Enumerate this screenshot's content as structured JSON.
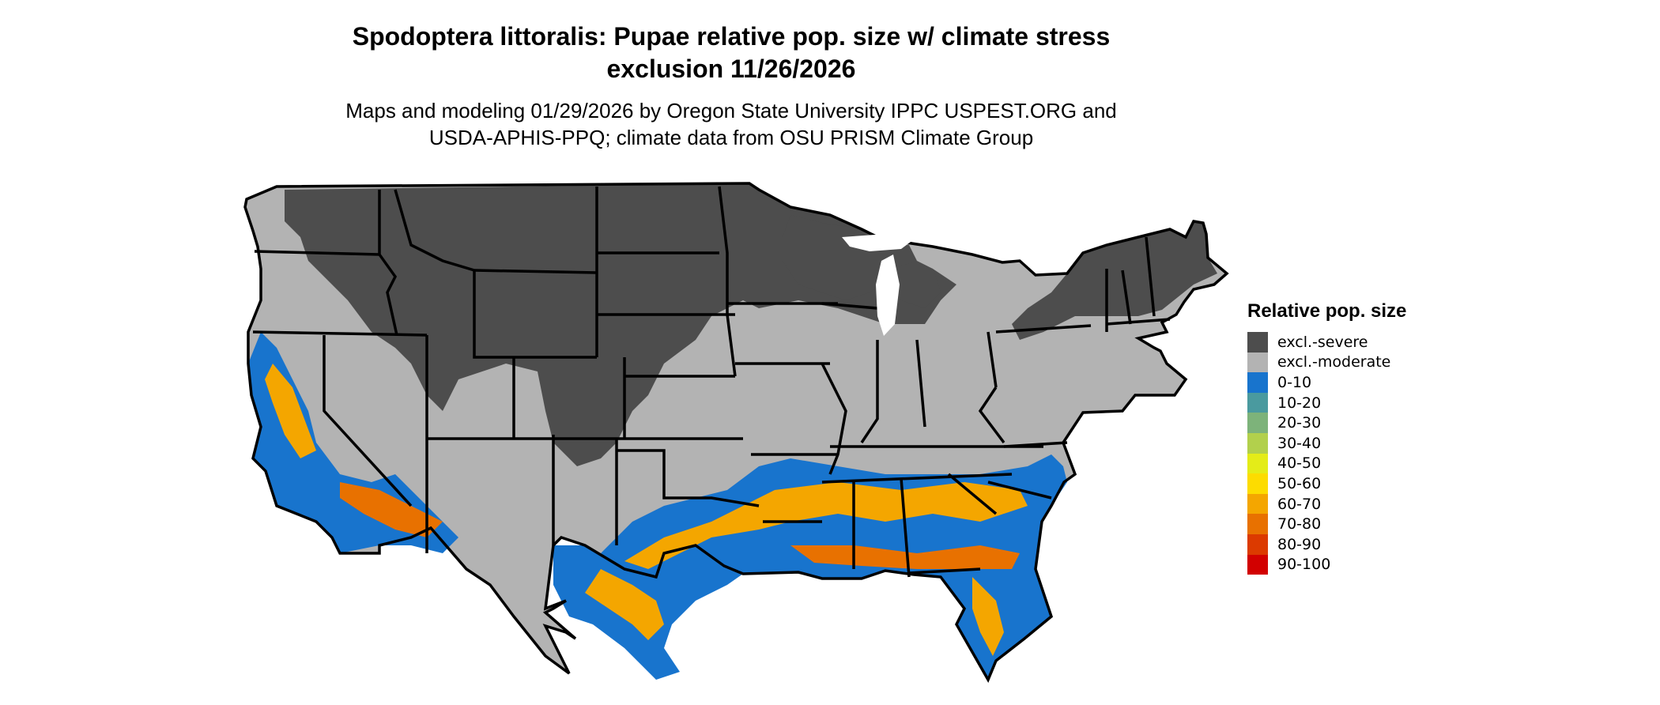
{
  "title_line1": "Spodoptera littoralis: Pupae relative pop. size w/ climate stress",
  "title_line2": "exclusion 11/26/2026",
  "subtitle_line1": "Maps and modeling 01/29/2026 by Oregon State University IPPC USPEST.ORG and",
  "subtitle_line2": "USDA-APHIS-PPQ; climate data from OSU PRISM Climate Group",
  "legend": {
    "title": "Relative pop. size",
    "items": [
      {
        "label": "excl.-severe",
        "color": "#4d4d4d"
      },
      {
        "label": "excl.-moderate",
        "color": "#b3b3b3"
      },
      {
        "label": "0-10",
        "color": "#1874cd"
      },
      {
        "label": "10-20",
        "color": "#4a9a9f"
      },
      {
        "label": "20-30",
        "color": "#7db37a"
      },
      {
        "label": "30-40",
        "color": "#b2d04c"
      },
      {
        "label": "40-50",
        "color": "#e4ec18"
      },
      {
        "label": "50-60",
        "color": "#fddc00"
      },
      {
        "label": "60-70",
        "color": "#f4a600"
      },
      {
        "label": "70-80",
        "color": "#e87100"
      },
      {
        "label": "80-90",
        "color": "#dc3a00"
      },
      {
        "label": "90-100",
        "color": "#d20000"
      }
    ]
  },
  "map_colors": {
    "severe": "#4d4d4d",
    "moderate": "#b3b3b3",
    "low": "#1874cd",
    "mid": "#f4a600",
    "high": "#e87100",
    "border": "#000000"
  }
}
